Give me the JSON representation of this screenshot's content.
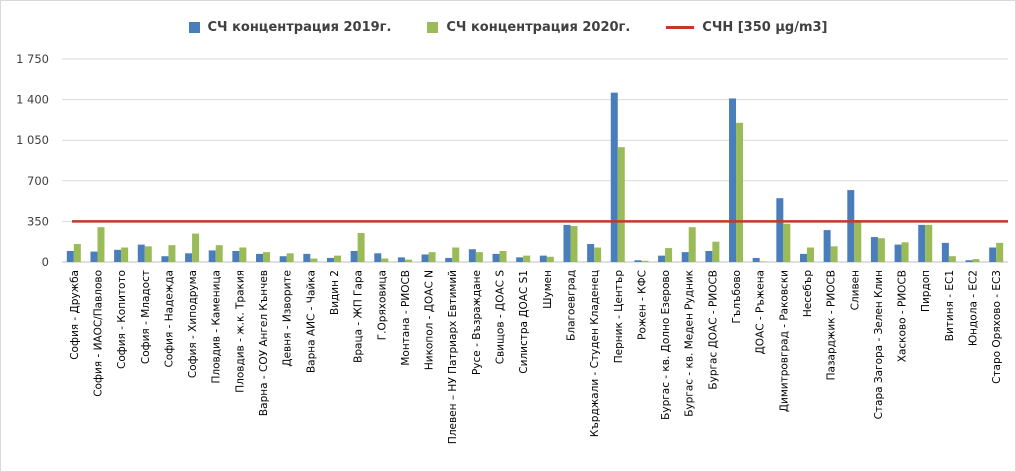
{
  "chart_data": {
    "type": "bar",
    "title": "",
    "xlabel": "",
    "ylabel": "",
    "ylim": [
      0,
      1750
    ],
    "yticks": [
      "0",
      "350",
      "700",
      "1 050",
      "1 400",
      "1 750"
    ],
    "ytick_values": [
      0,
      350,
      700,
      1050,
      1400,
      1750
    ],
    "grid": "horizontal",
    "legend_position": "top",
    "categories": [
      "София - Дружба",
      "София - ИАОС/Павлово",
      "София - Копитото",
      "София - Младост",
      "София - Надежда",
      "София - Хиподрума",
      "Пловдив - Каменица",
      "Пловдив - ж.к. Тракия",
      "Варна - СОУ Ангел Кънчев",
      "Девня - Изворите",
      "Варна АИС - Чайка",
      "Видин 2",
      "Враца - ЖП Гара",
      "Г.Оряховица",
      "Монтана - РИОСВ",
      "Никопол - ДОАС N",
      "Плевен – НУ Патриарх Евтимий",
      "Русе - Възраждане",
      "Свищов - ДОАС S",
      "Силистра ДОАС S1",
      "Шумен",
      "Благоевград",
      "Кърджали - Студен Кладенец",
      "Перник - Център",
      "Рожен - КФС",
      "Бургас - кв. Долно Езерово",
      "Бургас - кв. Меден Рудник",
      "Бургас ДОАС - РИОСВ",
      "Гълъбово",
      "ДОАС - Ръжена",
      "Димитровград - Раковски",
      "Несебър",
      "Пазарджик - РИОСВ",
      "Сливен",
      "Стара Загора - Зелен Клин",
      "Хасково - РИОСВ",
      "Пирдоп",
      "Витиня - ЕС1",
      "Юндола - ЕС2",
      "Старо Оряхово - ЕС3"
    ],
    "series": [
      {
        "name": "СЧ концентрация 2019г.",
        "color": "#4a7ebb",
        "values": [
          95,
          90,
          105,
          150,
          50,
          75,
          100,
          95,
          70,
          50,
          70,
          35,
          95,
          75,
          40,
          65,
          35,
          110,
          70,
          40,
          55,
          320,
          155,
          1460,
          15,
          55,
          85,
          95,
          1410,
          35,
          550,
          70,
          275,
          620,
          215,
          150,
          320,
          165,
          15,
          125
        ]
      },
      {
        "name": "СЧ концентрация 2020г.",
        "color": "#9bbb59",
        "values": [
          155,
          300,
          125,
          135,
          145,
          245,
          145,
          125,
          85,
          75,
          30,
          55,
          250,
          30,
          20,
          85,
          125,
          85,
          95,
          55,
          45,
          310,
          125,
          990,
          10,
          120,
          300,
          175,
          1200,
          5,
          330,
          125,
          135,
          360,
          205,
          170,
          320,
          50,
          25,
          165
        ]
      }
    ],
    "reference_line": {
      "name": "СЧН [350 µg/m3]",
      "value": 350,
      "color": "#c0392b"
    }
  }
}
